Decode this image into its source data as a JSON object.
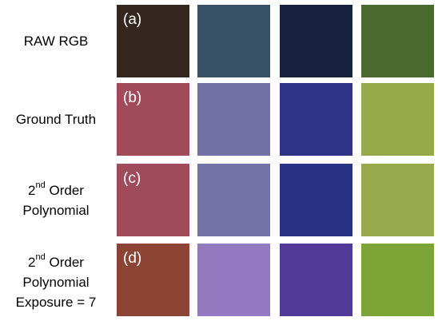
{
  "rows": [
    {
      "label_lines": [
        "RAW RGB"
      ],
      "tag": "(a)",
      "colors": [
        "#362620",
        "#375266",
        "#162240",
        "#486A2F"
      ]
    },
    {
      "label_lines": [
        "Ground Truth"
      ],
      "tag": "(b)",
      "colors": [
        "#A14A5A",
        "#7271A6",
        "#2D3488",
        "#97AA4A"
      ]
    },
    {
      "label_lines": [
        {
          "base": "2",
          "sup": "nd",
          "rest": " Order"
        },
        "Polynomial"
      ],
      "tag": "(c)",
      "colors": [
        "#A04B5C",
        "#7473A8",
        "#293386",
        "#98AA4B"
      ]
    },
    {
      "label_lines": [
        {
          "base": "2",
          "sup": "nd",
          "rest": " Order"
        },
        "Polynomial",
        "Exposure = 7"
      ],
      "tag": "(d)",
      "colors": [
        "#8C4535",
        "#937AC0",
        "#513A97",
        "#7CA437"
      ]
    }
  ]
}
